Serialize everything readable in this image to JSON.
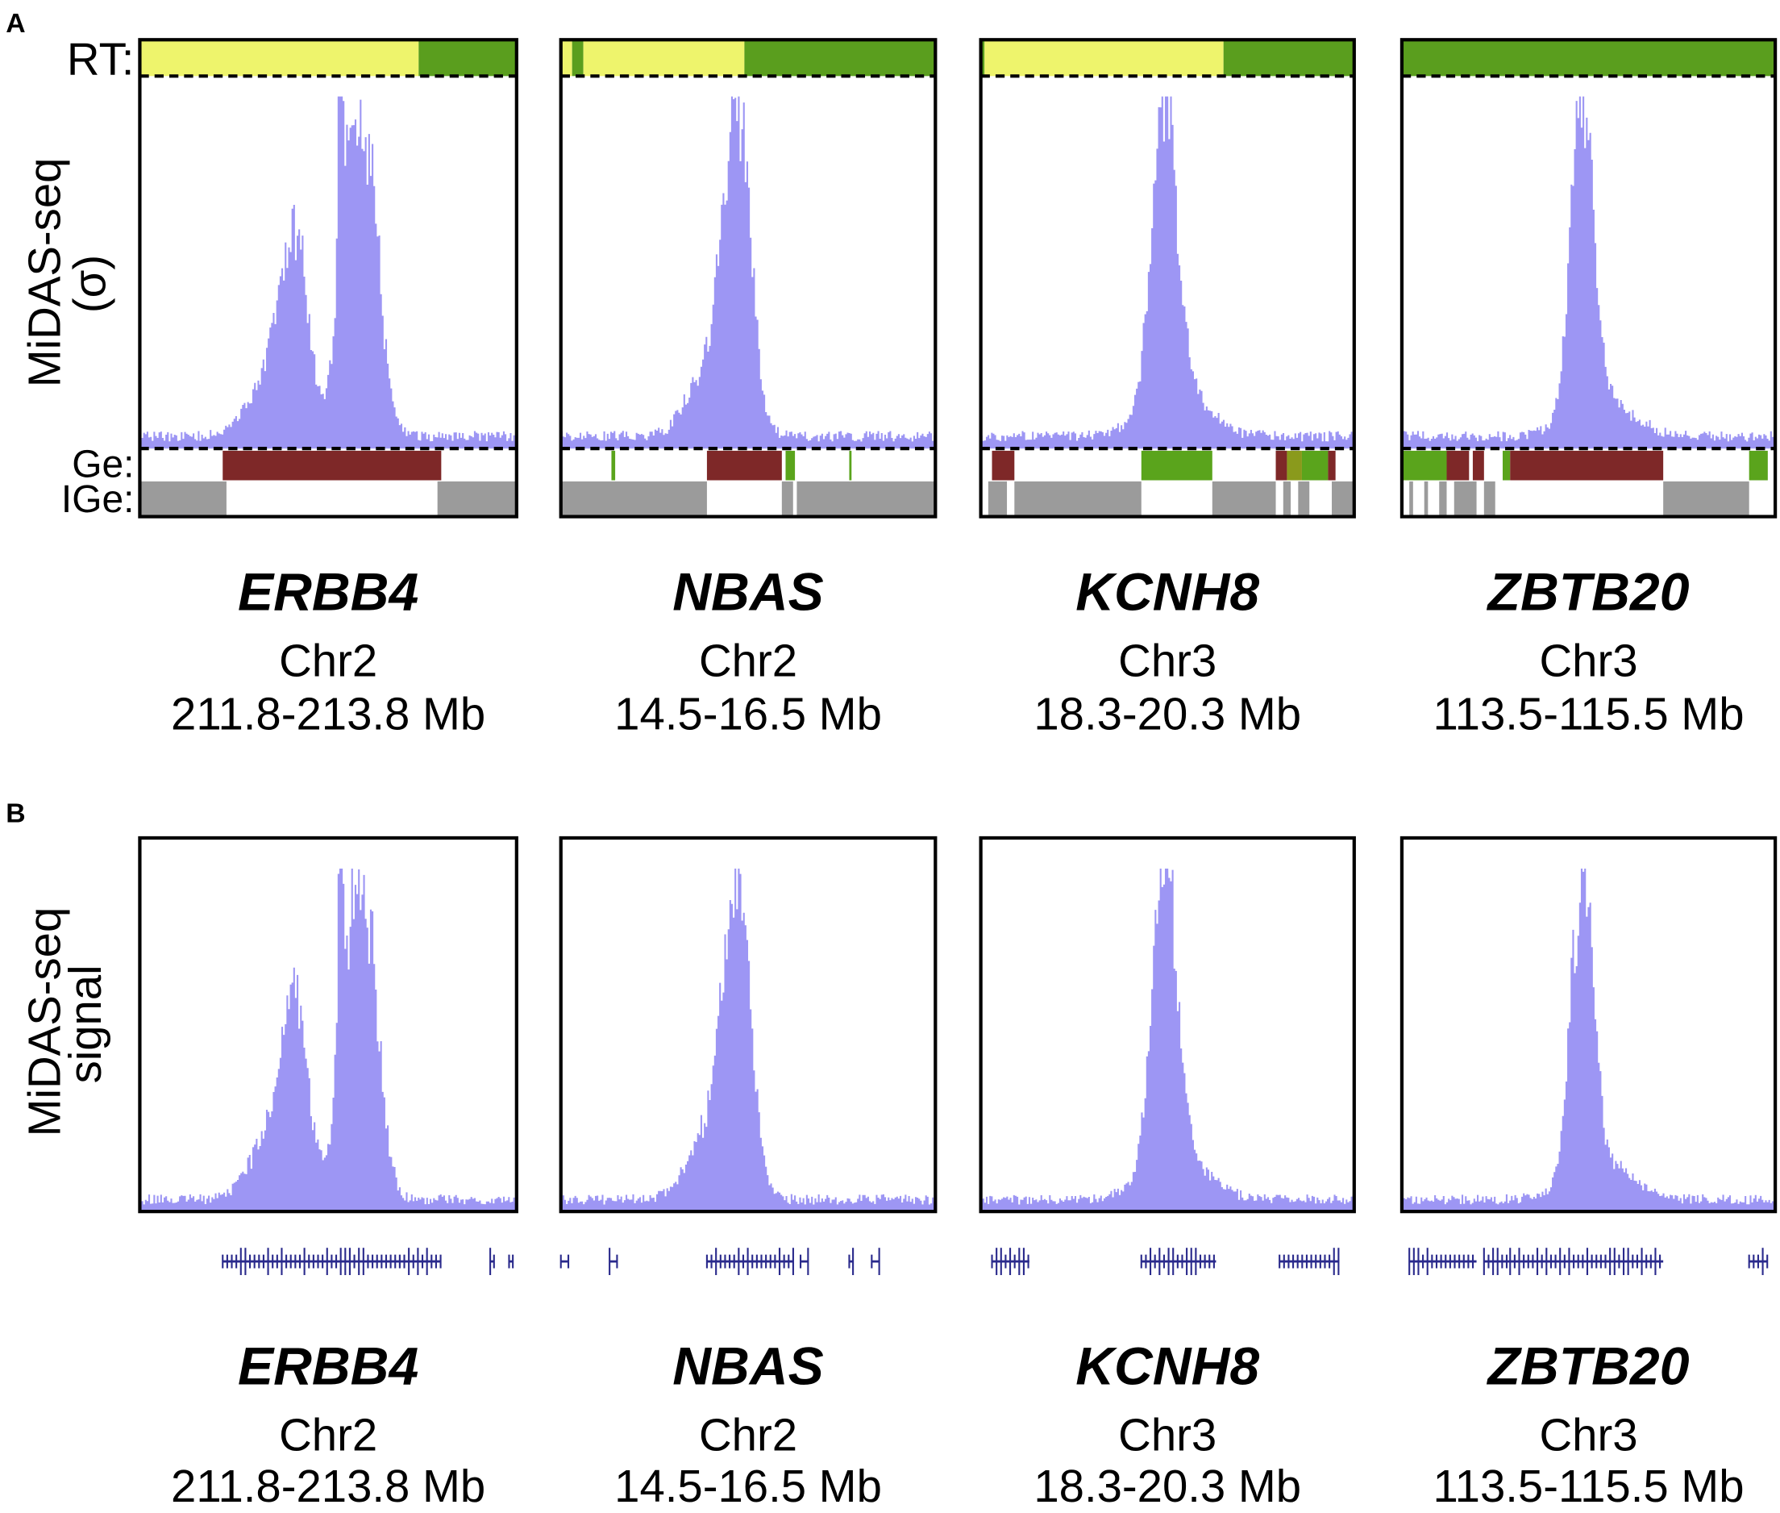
{
  "panel_a": {
    "label": "A",
    "y_label": "MiDAS-seq",
    "y_unit": "(σ)",
    "track_labels": {
      "rt": "RT:",
      "ge": "Ge:",
      "ige": "IGe:"
    },
    "loci": [
      {
        "gene": "ERBB4",
        "chromosome": "Chr2",
        "range": "211.8-213.8 Mb"
      },
      {
        "gene": "NBAS",
        "chromosome": "Chr2",
        "range": "14.5-16.5 Mb"
      },
      {
        "gene": "KCNH8",
        "chromosome": "Chr3",
        "range": "18.3-20.3 Mb"
      },
      {
        "gene": "ZBTB20",
        "chromosome": "Chr3",
        "range": "113.5-115.5 Mb"
      }
    ]
  },
  "panel_b": {
    "label": "B",
    "y_label_1": "MiDAS-seq",
    "y_label_2": "signal",
    "loci": [
      {
        "gene": "ERBB4",
        "chromosome": "Chr2",
        "range": "211.8-213.8 Mb"
      },
      {
        "gene": "NBAS",
        "chromosome": "Chr2",
        "range": "14.5-16.5 Mb"
      },
      {
        "gene": "KCNH8",
        "chromosome": "Chr3",
        "range": "18.3-20.3 Mb"
      },
      {
        "gene": "ZBTB20",
        "chromosome": "Chr3",
        "range": "113.5-115.5 Mb"
      }
    ]
  }
}
